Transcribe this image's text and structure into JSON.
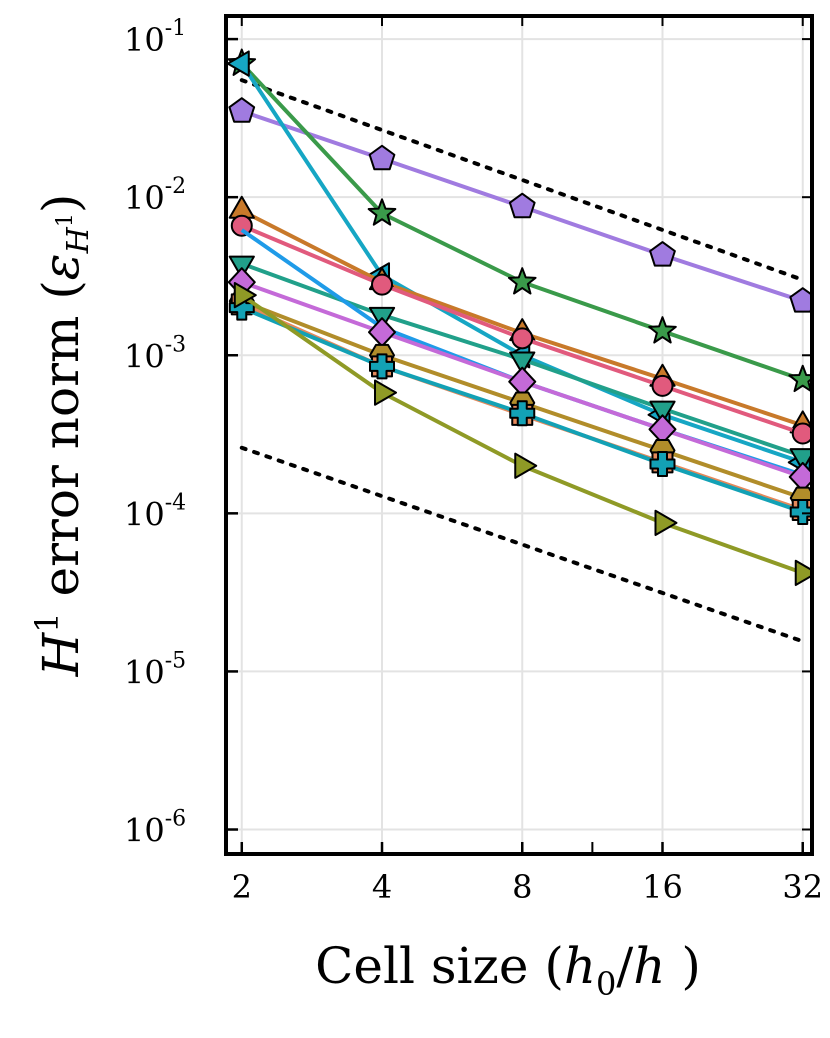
{
  "chart_data": {
    "type": "line",
    "title": "",
    "xlabel": "Cell size (h0/h )",
    "xlabel_parts": {
      "prefix": "Cell size (",
      "var": "h",
      "sub": "0",
      "slash": "/",
      "var2": "h",
      "suffix": " )"
    },
    "ylabel": "H1 error norm (εH1)",
    "ylabel_parts": {
      "var": "H",
      "sup": "1",
      "text": " error norm (",
      "eps": "ε",
      "sub": "H",
      "subsup": "1",
      "close": ")"
    },
    "x_scale": "log2",
    "y_scale": "log10",
    "x": [
      2,
      4,
      8,
      16,
      32
    ],
    "x_tick_labels": [
      "2",
      "4",
      "8",
      "16",
      "32"
    ],
    "xlim": [
      1.85,
      33.5
    ],
    "y_ticks": [
      {
        "value": 1e-06,
        "base": "10",
        "exp": "-6"
      },
      {
        "value": 1e-05,
        "base": "10",
        "exp": "-5"
      },
      {
        "value": 0.0001,
        "base": "10",
        "exp": "-4"
      },
      {
        "value": 0.001,
        "base": "10",
        "exp": "-3"
      },
      {
        "value": 0.01,
        "base": "10",
        "exp": "-2"
      },
      {
        "value": 0.1,
        "base": "10",
        "exp": "-1"
      }
    ],
    "ylim": [
      7e-07,
      0.14
    ],
    "grid": true,
    "legend": "none",
    "reference_lines": [
      {
        "name": "upper-reference",
        "style": "dotted",
        "x": [
          2,
          32
        ],
        "y": [
          0.055,
          0.003
        ]
      },
      {
        "name": "lower-reference",
        "style": "dotted",
        "x": [
          2,
          32
        ],
        "y": [
          0.00026,
          1.55e-05
        ]
      }
    ],
    "series": [
      {
        "name": "pentagon-purple",
        "color": "#a07be0",
        "marker": "pentagon",
        "values": [
          0.035,
          0.0175,
          0.0087,
          0.0043,
          0.0022
        ]
      },
      {
        "name": "star-green",
        "color": "#3a9a4a",
        "marker": "star",
        "values": [
          0.07,
          0.0079,
          0.0029,
          0.00142,
          0.0007
        ]
      },
      {
        "name": "triangle-left-cyan",
        "color": "#16a6c4",
        "marker": "triangle-left",
        "values": [
          0.07,
          0.0032,
          0.001,
          0.00042,
          0.00021
        ]
      },
      {
        "name": "triangle-up-orange",
        "color": "#c8792a",
        "marker": "triangle-up",
        "values": [
          0.0082,
          0.0029,
          0.00138,
          0.00071,
          0.00036
        ]
      },
      {
        "name": "circle-pink",
        "color": "#e15a7d",
        "marker": "circle",
        "values": [
          0.0066,
          0.0028,
          0.00128,
          0.00064,
          0.00032
        ]
      },
      {
        "name": "triangle-down-teal",
        "color": "#21a08a",
        "marker": "triangle-down",
        "values": [
          0.0038,
          0.0018,
          0.00094,
          0.00046,
          0.00023
        ]
      },
      {
        "name": "blue-line",
        "color": "#1f9be8",
        "marker": "none",
        "values": [
          0.0062,
          0.0015,
          0.00068,
          0.00034,
          0.000175
        ]
      },
      {
        "name": "diamond-violet",
        "color": "#c46ad8",
        "marker": "diamond",
        "values": [
          0.0029,
          0.0014,
          0.00068,
          0.00034,
          0.00017
        ]
      },
      {
        "name": "hexagon-gold",
        "color": "#b18d2a",
        "marker": "hexagon",
        "values": [
          0.0022,
          0.001,
          0.0005,
          0.00025,
          0.000125
        ]
      },
      {
        "name": "square-orange",
        "color": "#e5895b",
        "marker": "square",
        "values": [
          0.0021,
          0.00085,
          0.00042,
          0.00021,
          0.000105
        ]
      },
      {
        "name": "cross-teal",
        "color": "#13a1b5",
        "marker": "cross",
        "values": [
          0.002,
          0.00085,
          0.00043,
          0.000205,
          0.000102
        ]
      },
      {
        "name": "triangle-right-olive",
        "color": "#8f9a26",
        "marker": "triangle-right",
        "values": [
          0.0024,
          0.00058,
          0.0002,
          8.7e-05,
          4.2e-05
        ]
      }
    ]
  }
}
